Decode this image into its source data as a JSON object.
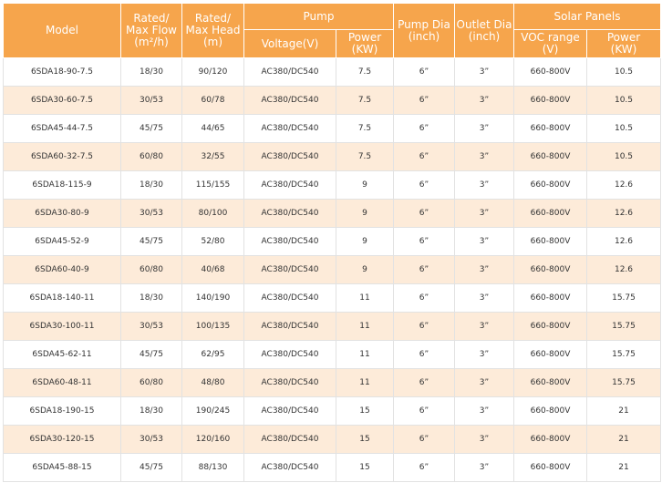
{
  "header": {
    "model": "Model",
    "flow": "Rated/\nMax Flow\n(m²/h)",
    "head": "Rated/\nMax Head\n(m)",
    "pump": "Pump",
    "voltage": "Voltage(V)",
    "pump_power": "Power\n(KW)",
    "pump_dia": "Pump Dia\n(inch)",
    "outlet_dia": "Outlet Dia\n(inch)",
    "solar": "Solar Panels",
    "voc": "VOC range\n(V)",
    "solar_power": "Power\n(KW)"
  },
  "rows": [
    [
      "6SDA18-90-7.5",
      "18/30",
      "90/120",
      "AC380/DC540",
      "7.5",
      "6”",
      "3”",
      "660-800V",
      "10.5"
    ],
    [
      "6SDA30-60-7.5",
      "30/53",
      "60/78",
      "AC380/DC540",
      "7.5",
      "6”",
      "3”",
      "660-800V",
      "10.5"
    ],
    [
      "6SDA45-44-7.5",
      "45/75",
      "44/65",
      "AC380/DC540",
      "7.5",
      "6”",
      "3”",
      "660-800V",
      "10.5"
    ],
    [
      "6SDA60-32-7.5",
      "60/80",
      "32/55",
      "AC380/DC540",
      "7.5",
      "6”",
      "3”",
      "660-800V",
      "10.5"
    ],
    [
      "6SDA18-115-9",
      "18/30",
      "115/155",
      "AC380/DC540",
      "9",
      "6”",
      "3”",
      "660-800V",
      "12.6"
    ],
    [
      "6SDA30-80-9",
      "30/53",
      "80/100",
      "AC380/DC540",
      "9",
      "6”",
      "3”",
      "660-800V",
      "12.6"
    ],
    [
      "6SDA45-52-9",
      "45/75",
      "52/80",
      "AC380/DC540",
      "9",
      "6”",
      "3”",
      "660-800V",
      "12.6"
    ],
    [
      "6SDA60-40-9",
      "60/80",
      "40/68",
      "AC380/DC540",
      "9",
      "6”",
      "3”",
      "660-800V",
      "12.6"
    ],
    [
      "6SDA18-140-11",
      "18/30",
      "140/190",
      "AC380/DC540",
      "11",
      "6”",
      "3”",
      "660-800V",
      "15.75"
    ],
    [
      "6SDA30-100-11",
      "30/53",
      "100/135",
      "AC380/DC540",
      "11",
      "6”",
      "3”",
      "660-800V",
      "15.75"
    ],
    [
      "6SDA45-62-11",
      "45/75",
      "62/95",
      "AC380/DC540",
      "11",
      "6”",
      "3”",
      "660-800V",
      "15.75"
    ],
    [
      "6SDA60-48-11",
      "60/80",
      "48/80",
      "AC380/DC540",
      "11",
      "6”",
      "3”",
      "660-800V",
      "15.75"
    ],
    [
      "6SDA18-190-15",
      "18/30",
      "190/245",
      "AC380/DC540",
      "15",
      "6”",
      "3”",
      "660-800V",
      "21"
    ],
    [
      "6SDA30-120-15",
      "30/53",
      "120/160",
      "AC380/DC540",
      "15",
      "6”",
      "3”",
      "660-800V",
      "21"
    ],
    [
      "6SDA45-88-15",
      "45/75",
      "88/130",
      "AC380/DC540",
      "15",
      "6”",
      "3”",
      "660-800V",
      "21"
    ]
  ],
  "colors": {
    "header_bg": "#f6a54c",
    "alt_row_bg": "#fdebd9",
    "header_text": "#ffffff"
  }
}
